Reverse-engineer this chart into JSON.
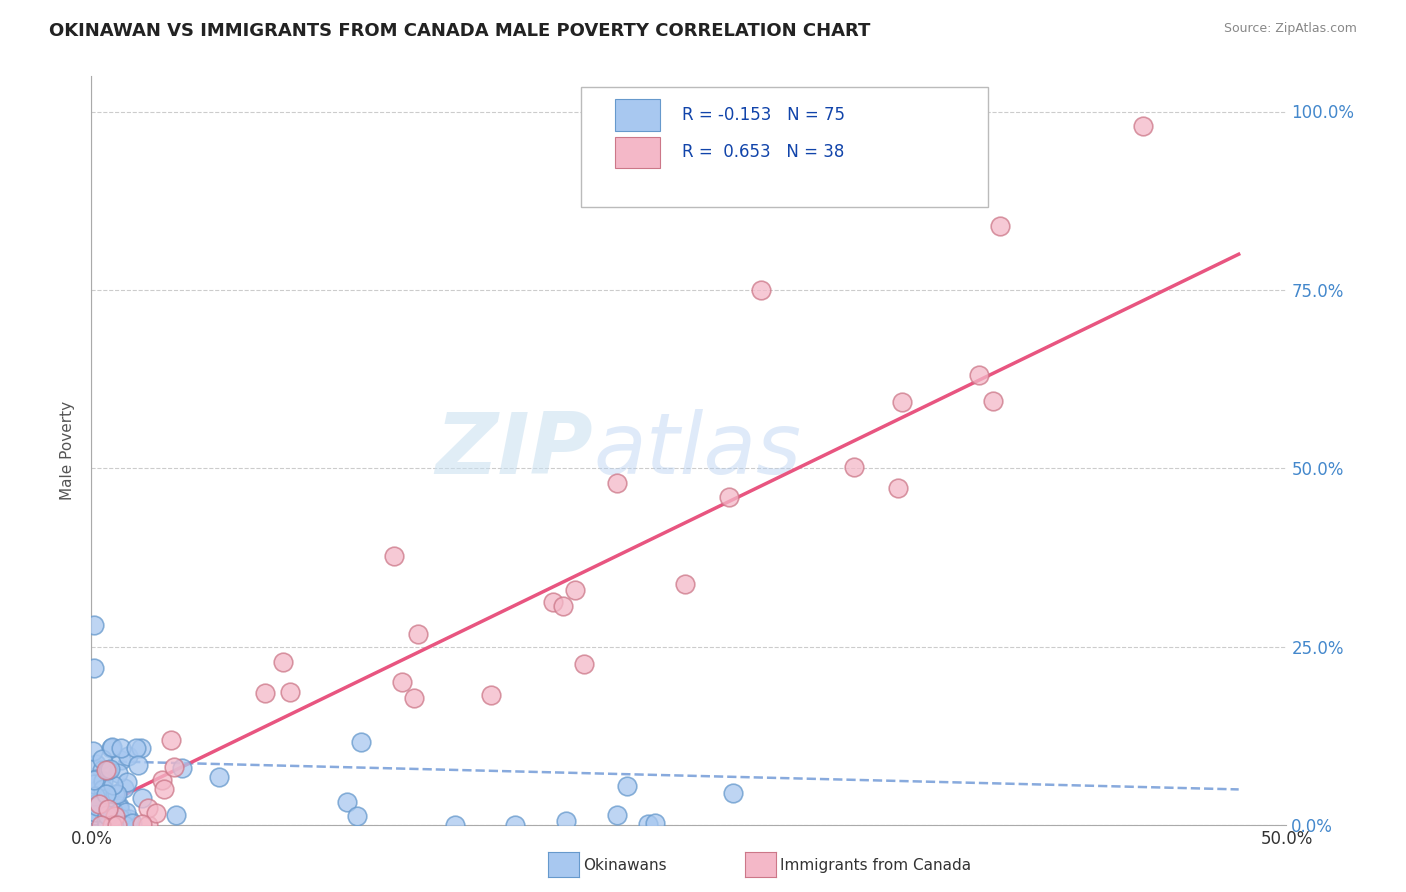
{
  "title": "OKINAWAN VS IMMIGRANTS FROM CANADA MALE POVERTY CORRELATION CHART",
  "source": "Source: ZipAtlas.com",
  "ylabel": "Male Poverty",
  "xlim": [
    0.0,
    0.5
  ],
  "ylim": [
    0.0,
    1.05
  ],
  "ytick_labels": [
    "0.0%",
    "25.0%",
    "50.0%",
    "75.0%",
    "100.0%"
  ],
  "ytick_vals": [
    0.0,
    0.25,
    0.5,
    0.75,
    1.0
  ],
  "xtick_vals": [
    0.0,
    0.5
  ],
  "xtick_labels": [
    "0.0%",
    "50.0%"
  ],
  "okinawan_color": "#a8c8f0",
  "okinawan_edge": "#6699cc",
  "canada_color": "#f4b8c8",
  "canada_edge": "#cc7788",
  "trendline_okinawan_color": "#88aadd",
  "trendline_canada_color": "#e85580",
  "watermark_color": "#cce4f5",
  "background_color": "#ffffff",
  "grid_color": "#cccccc",
  "legend_box_color": "#eeeeee",
  "title_color": "#222222",
  "source_color": "#888888",
  "ytick_color": "#4488cc",
  "ylabel_color": "#555555",
  "legend_text_color": "#1144aa",
  "legend_label_r1": "R = -0.153",
  "legend_n1": "N = 75",
  "legend_label_r2": "R =  0.653",
  "legend_n2": "N = 38",
  "bottom_legend_ok": "Okinawans",
  "bottom_legend_ca": "Immigrants from Canada"
}
